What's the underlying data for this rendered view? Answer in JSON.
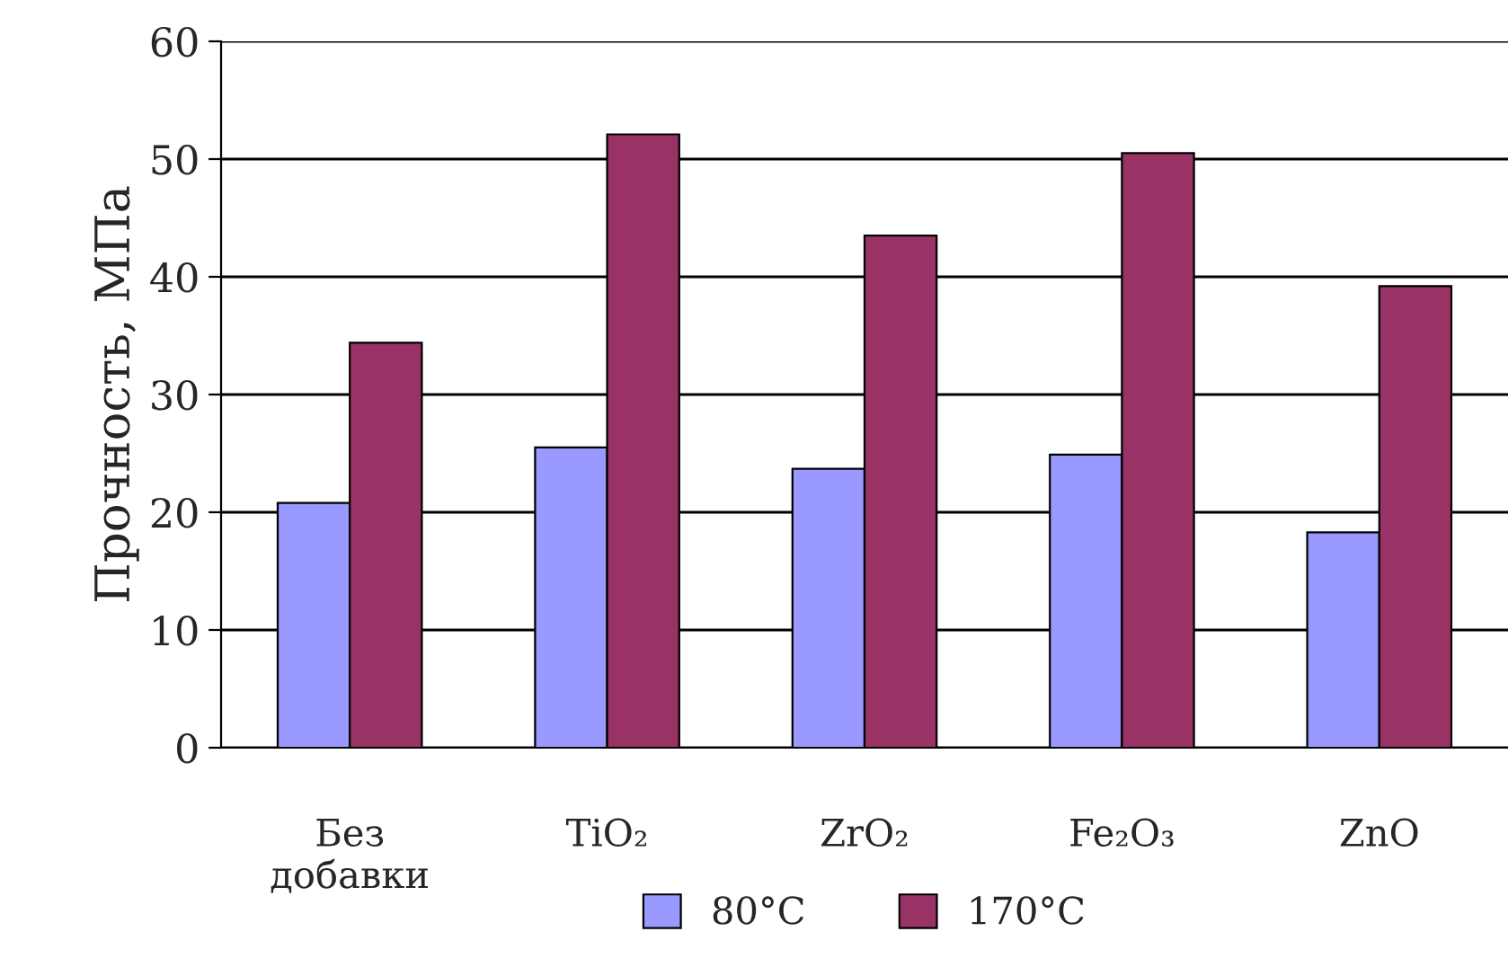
{
  "chart_data": {
    "type": "bar",
    "ylabel": "Прочность, МПа",
    "categories": [
      "Без\nдобавки",
      "TiO₂",
      "ZrO₂",
      "Fe₂O₃",
      "ZnO"
    ],
    "series": [
      {
        "name": "80°C",
        "color": "#9999ff",
        "values": [
          20.8,
          25.5,
          23.7,
          24.9,
          18.3
        ]
      },
      {
        "name": "170°C",
        "color": "#993366",
        "values": [
          34.4,
          52.1,
          43.5,
          50.5,
          39.2
        ]
      }
    ],
    "ylim": [
      0,
      60
    ],
    "yticks": [
      0,
      10,
      20,
      30,
      40,
      50,
      60
    ],
    "grid": "y",
    "legend": "bottom"
  }
}
